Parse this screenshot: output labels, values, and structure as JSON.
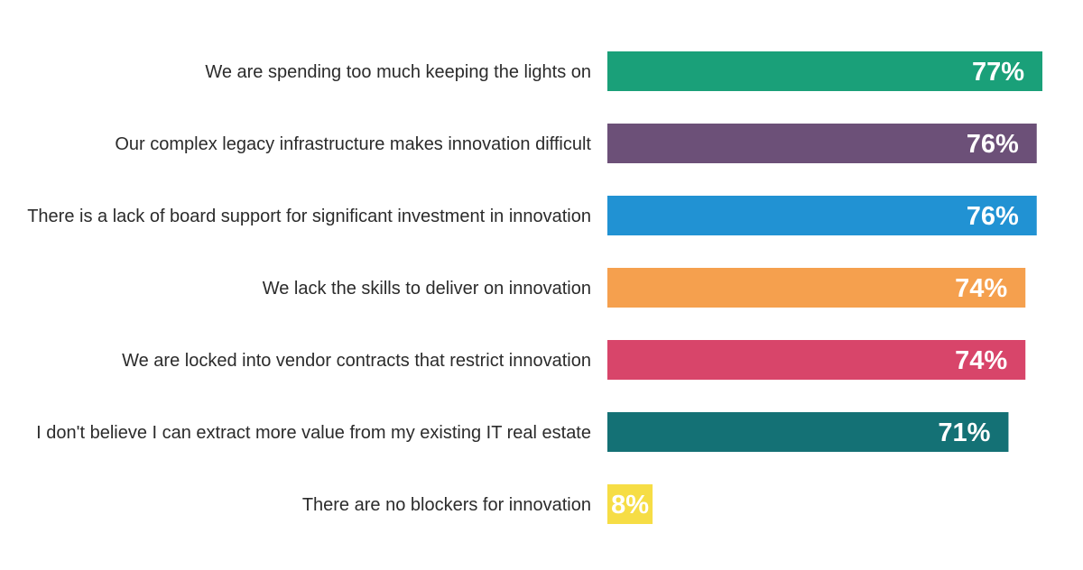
{
  "chart_data": {
    "type": "bar",
    "orientation": "horizontal",
    "title": "",
    "xlabel": "",
    "ylabel": "",
    "xlim": [
      0,
      77
    ],
    "grid": false,
    "legend": "none",
    "categories": [
      "We are spending too much keeping the lights on",
      "Our complex legacy infrastructure makes innovation difficult",
      "There is a lack of board support for significant investment in innovation",
      "We lack the skills to deliver on innovation",
      "We are locked into vendor contracts that restrict innovation",
      "I don't believe I can extract more value from my existing IT real estate",
      "There are no blockers for innovation"
    ],
    "values": [
      77,
      76,
      76,
      74,
      74,
      71,
      8
    ],
    "value_labels": [
      "77%",
      "76%",
      "76%",
      "74%",
      "74%",
      "71%",
      "8%"
    ],
    "colors": [
      "#1aa079",
      "#6c5078",
      "#2192d3",
      "#f5a04e",
      "#d8456a",
      "#147175",
      "#f6dd45"
    ]
  }
}
